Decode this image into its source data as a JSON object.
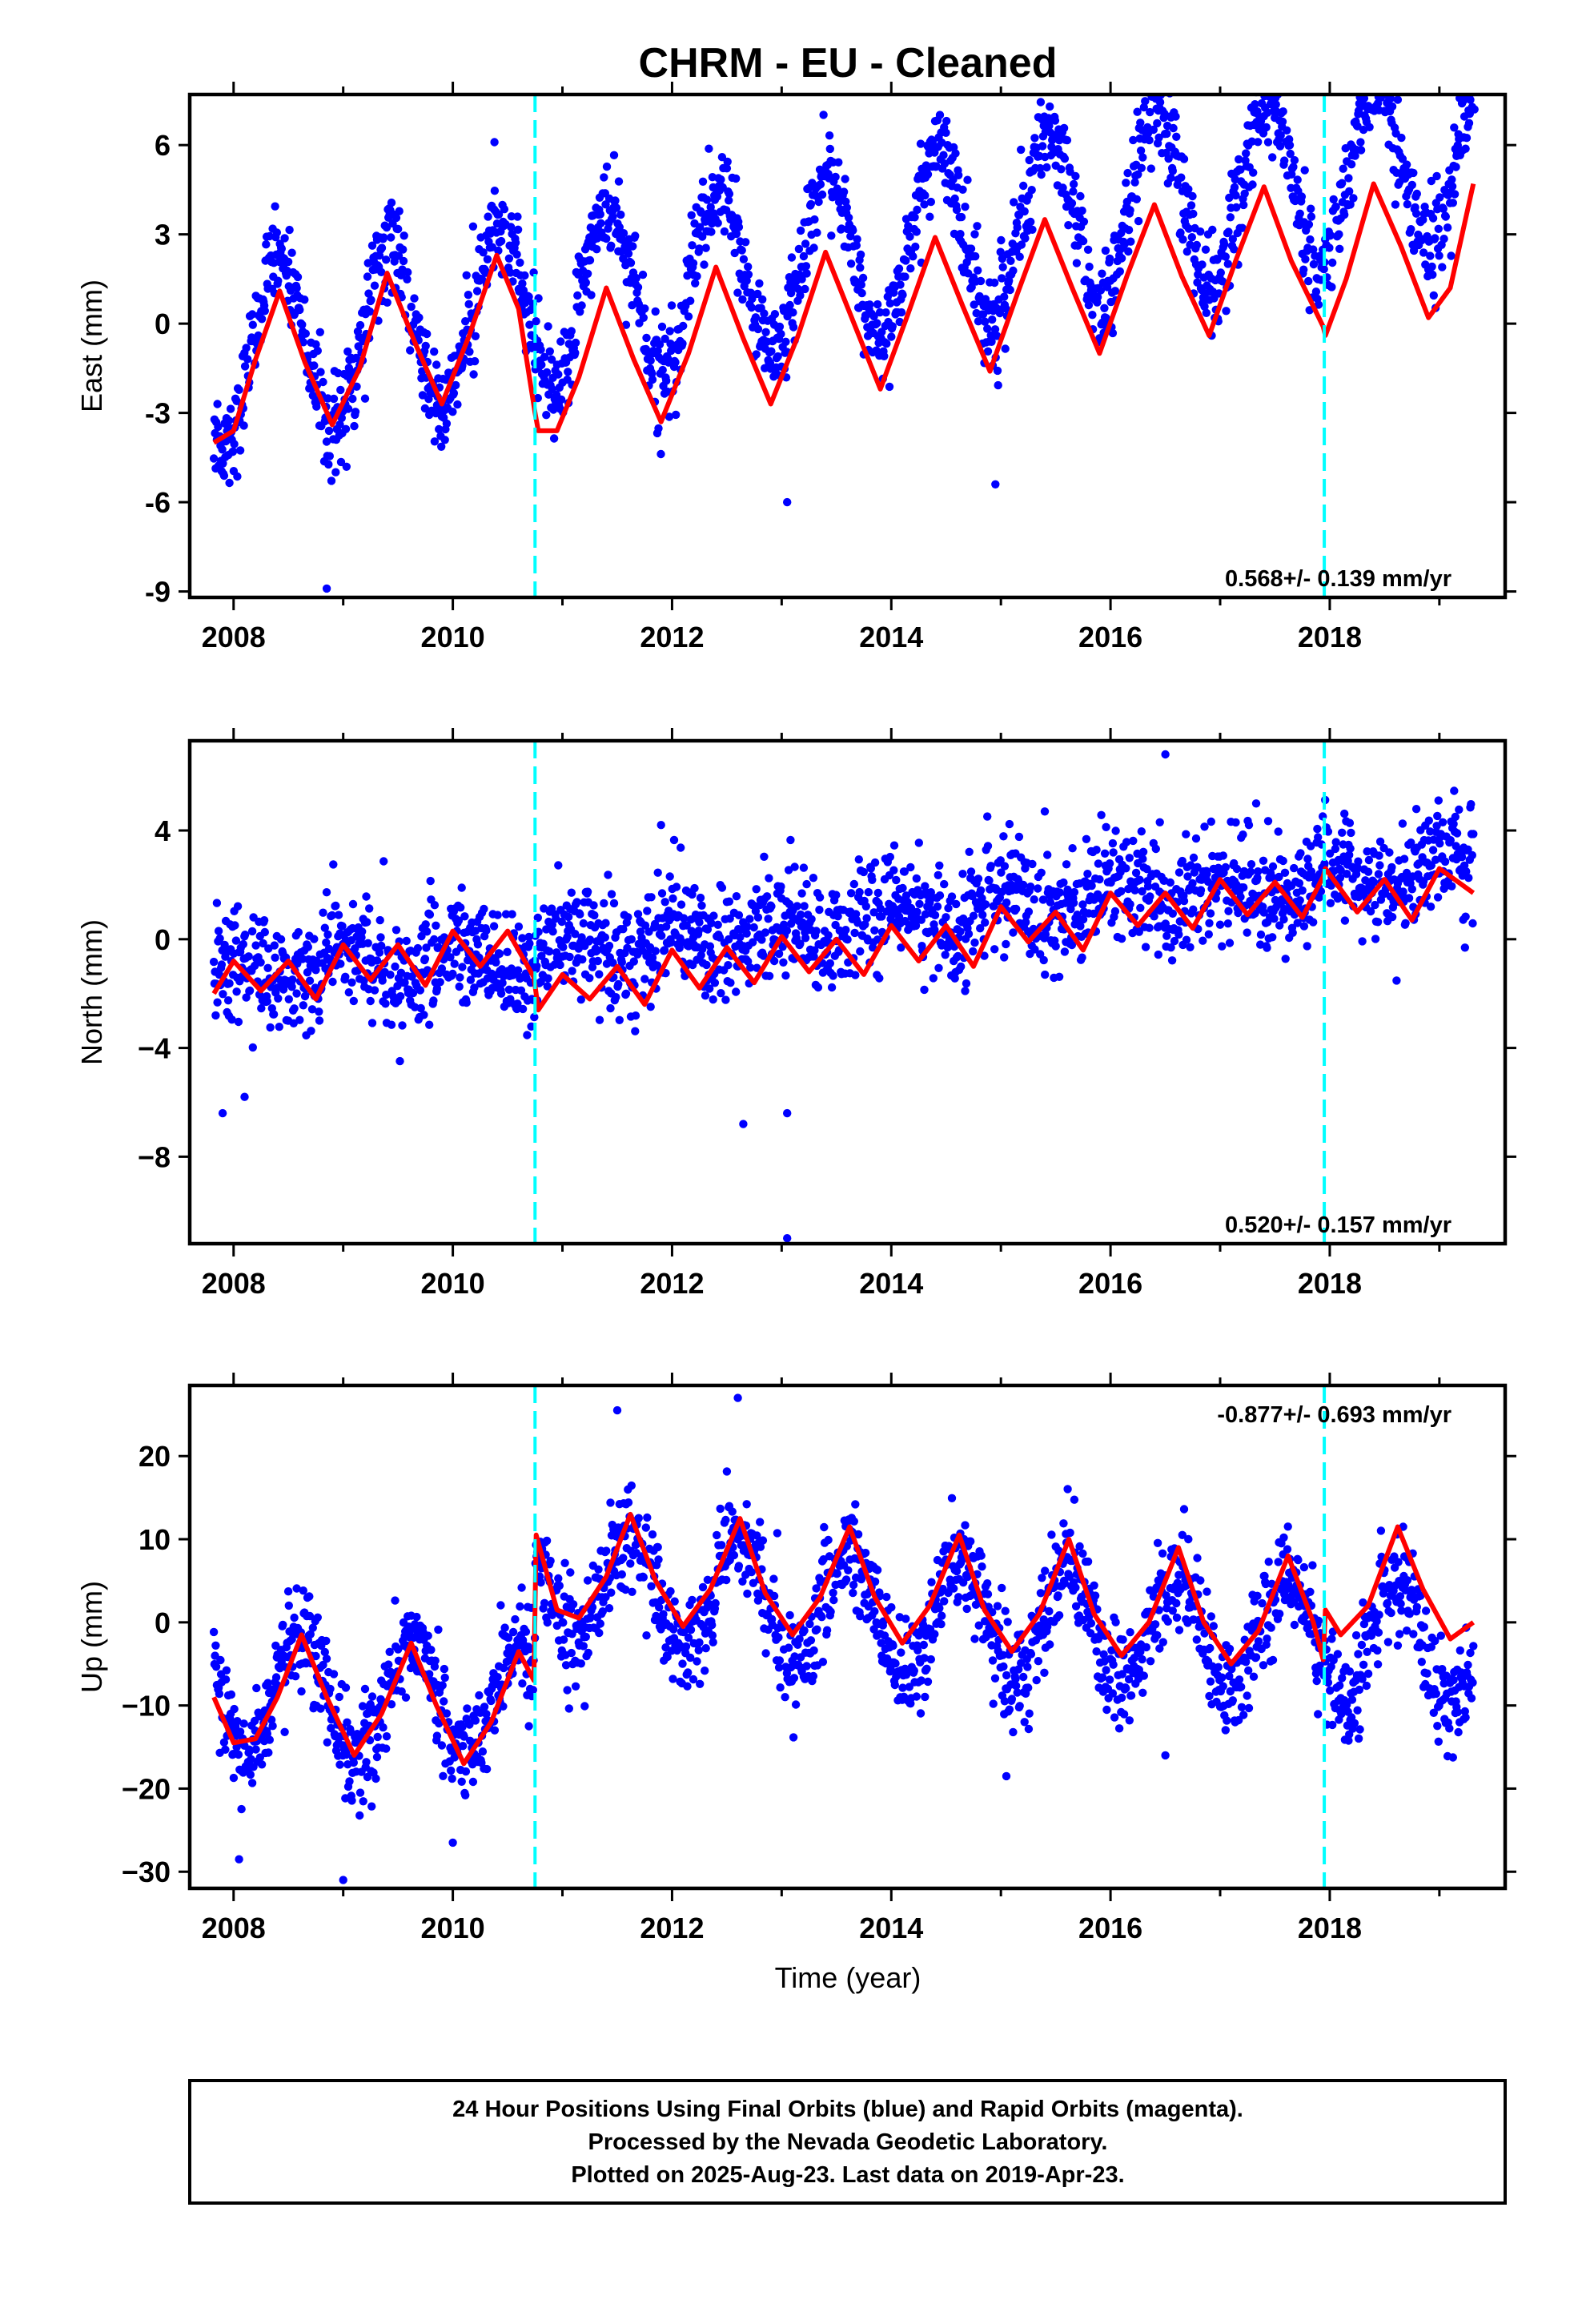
{
  "title": "CHRM  - EU - Cleaned",
  "xlabel": "Time (year)",
  "footer": {
    "line1": "24 Hour Positions Using Final Orbits (blue) and Rapid Orbits (magenta).",
    "line2": "Processed by the Nevada Geodetic Laboratory.",
    "line3": "Plotted on 2025-Aug-23. Last data on 2019-Apr-23."
  },
  "colors": {
    "final_orbits": "#0000ff",
    "rapid_orbits": "#ff00ff",
    "model_fit": "#ff0000",
    "equipment_change": "#00ffff"
  },
  "chart_data": [
    {
      "type": "scatter",
      "panel": "east",
      "ylabel": "East (mm)",
      "xlim": [
        2007.6,
        2019.6
      ],
      "ylim": [
        -9.2,
        7.7
      ],
      "x_ticks": [
        2008,
        2010,
        2012,
        2014,
        2016,
        2018
      ],
      "x_tick_labels": [
        "2008",
        "2010",
        "2012",
        "2014",
        "2016",
        "2018"
      ],
      "y_ticks": [
        -9,
        -6,
        -3,
        0,
        3,
        6
      ],
      "y_tick_labels": [
        "-9",
        "-6",
        "-3",
        "0",
        "3",
        "6"
      ],
      "rate_label": "0.568+/- 0.139 mm/yr",
      "vertical_lines": [
        2010.75,
        2017.95
      ],
      "series": [
        {
          "kind": "points",
          "x_start": 2007.82,
          "x_end": 2019.31,
          "count": 2100,
          "trend_intercept": -1.2,
          "trend_slope": 0.6,
          "annual_amplitude": 2.9,
          "annual_phase_peak": 0.42,
          "noise_sigma": 0.95,
          "outliers": [
            [
              2008.85,
              -8.9
            ],
            [
              2010.38,
              6.1
            ],
            [
              2013.05,
              -6.0
            ],
            [
              2017.38,
              7.4
            ],
            [
              2019.32,
              7.2
            ],
            [
              2016.55,
              4.9
            ],
            [
              2014.95,
              -5.4
            ]
          ]
        },
        {
          "kind": "line",
          "x": [
            2007.82,
            2008.0,
            2008.2,
            2008.42,
            2008.65,
            2008.9,
            2009.15,
            2009.4,
            2009.65,
            2009.9,
            2010.15,
            2010.4,
            2010.6,
            2010.75,
            2010.78,
            2010.95,
            2011.15,
            2011.4,
            2011.65,
            2011.9,
            2012.15,
            2012.4,
            2012.65,
            2012.9,
            2013.15,
            2013.4,
            2013.65,
            2013.9,
            2014.15,
            2014.4,
            2014.65,
            2014.9,
            2015.15,
            2015.4,
            2015.65,
            2015.9,
            2016.15,
            2016.4,
            2016.65,
            2016.9,
            2017.15,
            2017.4,
            2017.65,
            2017.94,
            2017.96,
            2018.15,
            2018.4,
            2018.65,
            2018.9,
            2019.1,
            2019.31
          ],
          "y": [
            -4.0,
            -3.6,
            -1.2,
            1.1,
            -1.3,
            -3.4,
            -1.5,
            1.7,
            -0.6,
            -2.7,
            -0.4,
            2.3,
            0.5,
            -3.0,
            -3.6,
            -3.6,
            -1.8,
            1.2,
            -1.2,
            -3.3,
            -1.0,
            1.9,
            -0.5,
            -2.7,
            -0.4,
            2.4,
            0.1,
            -2.2,
            0.3,
            2.9,
            0.6,
            -1.6,
            1.0,
            3.5,
            1.2,
            -1.0,
            1.6,
            4.0,
            1.6,
            -0.4,
            2.2,
            4.6,
            2.1,
            -0.1,
            -0.4,
            1.5,
            4.7,
            2.6,
            0.2,
            1.2,
            4.7
          ]
        }
      ]
    },
    {
      "type": "scatter",
      "panel": "north",
      "ylabel": "North (mm)",
      "xlim": [
        2007.6,
        2019.6
      ],
      "ylim": [
        -11.2,
        7.3
      ],
      "x_ticks": [
        2008,
        2010,
        2012,
        2014,
        2016,
        2018
      ],
      "x_tick_labels": [
        "2008",
        "2010",
        "2012",
        "2014",
        "2016",
        "2018"
      ],
      "y_ticks": [
        -8,
        -4,
        0,
        4
      ],
      "y_tick_labels": [
        "−8",
        "−4",
        "0",
        "4"
      ],
      "rate_label": "0.520+/- 0.157 mm/yr",
      "vertical_lines": [
        2010.75,
        2017.95
      ],
      "series": [
        {
          "kind": "points",
          "x_start": 2007.82,
          "x_end": 2019.31,
          "count": 2100,
          "trend_intercept": -1.4,
          "trend_slope": 0.35,
          "annual_amplitude": 0.55,
          "annual_phase_peak": 0.05,
          "noise_sigma": 1.2,
          "outliers": [
            [
              2007.9,
              -6.4
            ],
            [
              2008.1,
              -5.8
            ],
            [
              2012.65,
              -6.8
            ],
            [
              2013.05,
              -11.0
            ],
            [
              2013.05,
              -6.4
            ],
            [
              2016.5,
              6.8
            ],
            [
              2015.4,
              4.7
            ],
            [
              2016.45,
              4.3
            ],
            [
              2011.9,
              4.2
            ]
          ]
        },
        {
          "kind": "line",
          "x": [
            2007.82,
            2008.0,
            2008.25,
            2008.5,
            2008.75,
            2009.0,
            2009.25,
            2009.5,
            2009.75,
            2010.0,
            2010.25,
            2010.5,
            2010.74,
            2010.78,
            2011.0,
            2011.25,
            2011.5,
            2011.75,
            2012.0,
            2012.25,
            2012.5,
            2012.75,
            2013.0,
            2013.25,
            2013.5,
            2013.75,
            2014.0,
            2014.25,
            2014.5,
            2014.75,
            2015.0,
            2015.25,
            2015.5,
            2015.75,
            2016.0,
            2016.25,
            2016.5,
            2016.75,
            2017.0,
            2017.25,
            2017.5,
            2017.75,
            2017.94,
            2017.96,
            2018.25,
            2018.5,
            2018.75,
            2019.0,
            2019.31
          ],
          "y": [
            -2.0,
            -0.8,
            -1.9,
            -0.8,
            -2.2,
            -0.2,
            -1.5,
            -0.2,
            -1.7,
            0.3,
            -1.0,
            0.3,
            -1.4,
            -2.6,
            -1.3,
            -2.2,
            -1.0,
            -2.4,
            -0.4,
            -1.8,
            -0.3,
            -1.6,
            0.1,
            -1.2,
            0.0,
            -1.3,
            0.5,
            -0.8,
            0.5,
            -1.0,
            1.2,
            -0.1,
            1.0,
            -0.4,
            1.7,
            0.5,
            1.7,
            0.4,
            2.2,
            0.9,
            2.1,
            0.8,
            2.3,
            2.6,
            1.0,
            2.2,
            0.7,
            2.6,
            1.7
          ]
        }
      ]
    },
    {
      "type": "scatter",
      "panel": "up",
      "ylabel": "Up (mm)",
      "xlim": [
        2007.6,
        2019.6
      ],
      "ylim": [
        -32,
        28.5
      ],
      "x_ticks": [
        2008,
        2010,
        2012,
        2014,
        2016,
        2018
      ],
      "x_tick_labels": [
        "2008",
        "2010",
        "2012",
        "2014",
        "2016",
        "2018"
      ],
      "y_ticks": [
        -30,
        -20,
        -10,
        0,
        10,
        20
      ],
      "y_tick_labels": [
        "−30",
        "−20",
        "−10",
        "0",
        "10",
        "20"
      ],
      "rate_label": "-0.877+/- 0.693 mm/yr",
      "vertical_lines": [
        2010.75,
        2017.95
      ],
      "series": [
        {
          "kind": "points",
          "x_start": 2007.82,
          "x_end": 2019.31,
          "count": 2100,
          "annual_amplitude": 6.8,
          "annual_phase_peak": 0.62,
          "noise_sigma": 3.6,
          "offset_before_2010_75": -9.0,
          "offset_after_2010_75": 4.5,
          "trend_slope_after": -0.9,
          "outliers": [
            [
              2009.0,
              -31.0
            ],
            [
              2012.6,
              27.0
            ],
            [
              2011.5,
              25.5
            ],
            [
              2015.05,
              -18.5
            ],
            [
              2008.05,
              -28.5
            ],
            [
              2010.0,
              -26.5
            ],
            [
              2016.5,
              -16.0
            ]
          ]
        },
        {
          "kind": "line",
          "x": [
            2007.82,
            2008.0,
            2008.2,
            2008.4,
            2008.62,
            2008.85,
            2009.1,
            2009.35,
            2009.62,
            2009.85,
            2010.1,
            2010.35,
            2010.6,
            2010.74,
            2010.76,
            2010.95,
            2011.15,
            2011.4,
            2011.62,
            2011.85,
            2012.1,
            2012.35,
            2012.62,
            2012.85,
            2013.1,
            2013.35,
            2013.62,
            2013.85,
            2014.1,
            2014.35,
            2014.62,
            2014.85,
            2015.1,
            2015.35,
            2015.62,
            2015.85,
            2016.1,
            2016.35,
            2016.62,
            2016.85,
            2017.1,
            2017.35,
            2017.62,
            2017.85,
            2017.94,
            2017.96,
            2018.1,
            2018.35,
            2018.62,
            2018.85,
            2019.1,
            2019.31
          ],
          "y": [
            -9.0,
            -14.5,
            -14.0,
            -9.0,
            -1.5,
            -9.0,
            -16.0,
            -11.0,
            -2.5,
            -10.0,
            -17.0,
            -12.0,
            -3.5,
            -7.0,
            10.5,
            1.5,
            0.5,
            5.5,
            13.0,
            5.0,
            -0.5,
            4.0,
            12.5,
            3.5,
            -1.5,
            3.0,
            11.5,
            3.0,
            -2.5,
            2.0,
            10.5,
            1.5,
            -3.5,
            1.0,
            10.0,
            1.0,
            -4.0,
            0.0,
            9.0,
            0.0,
            -5.0,
            -1.0,
            8.0,
            0.0,
            -4.5,
            1.5,
            -1.5,
            2.0,
            11.5,
            4.0,
            -2.0,
            0.0
          ]
        }
      ]
    }
  ]
}
